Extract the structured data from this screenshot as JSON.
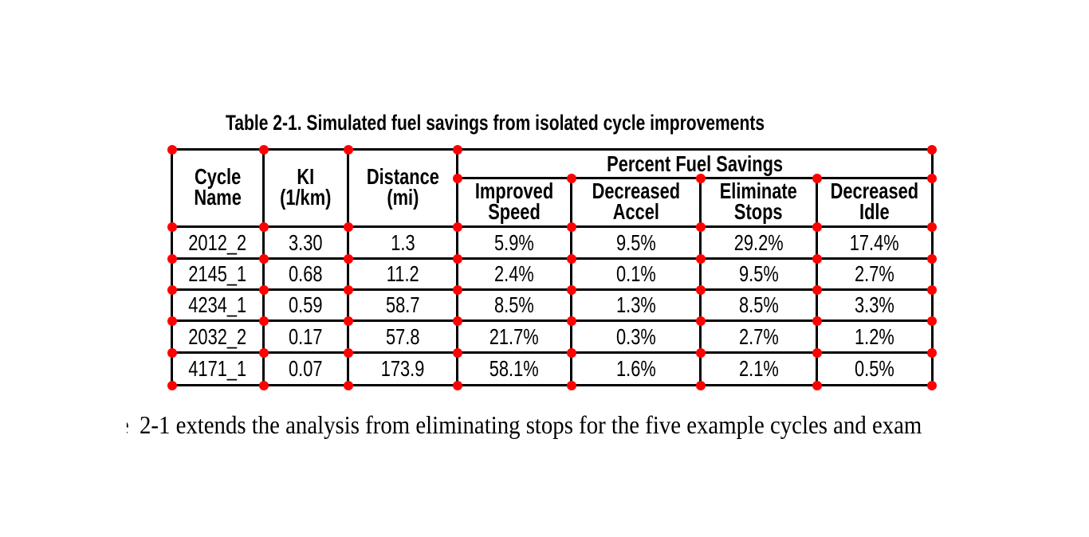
{
  "page": {
    "background_color": "#ffffff"
  },
  "caption": "Table 2-1. Simulated fuel savings from isolated cycle improvements",
  "table": {
    "marker_color": "#ff0000",
    "border_color": "#000000",
    "group_header": "Percent Fuel Savings",
    "column_headers": [
      {
        "id": "cycle-name",
        "lines": [
          "Cycle",
          "Name"
        ]
      },
      {
        "id": "ki",
        "lines": [
          "KI",
          "(1/km)"
        ]
      },
      {
        "id": "distance",
        "lines": [
          "Distance",
          "(mi)"
        ]
      },
      {
        "id": "improved-speed",
        "lines": [
          "Improved",
          "Speed"
        ]
      },
      {
        "id": "decreased-accel",
        "lines": [
          "Decreased",
          "Accel"
        ]
      },
      {
        "id": "eliminate-stops",
        "lines": [
          "Eliminate",
          "Stops"
        ]
      },
      {
        "id": "decreased-idle",
        "lines": [
          "Decreased",
          "Idle"
        ]
      }
    ],
    "rows": [
      [
        "2012_2",
        "3.30",
        "1.3",
        "5.9%",
        "9.5%",
        "29.2%",
        "17.4%"
      ],
      [
        "2145_1",
        "0.68",
        "11.2",
        "2.4%",
        "0.1%",
        "9.5%",
        "2.7%"
      ],
      [
        "4234_1",
        "0.59",
        "58.7",
        "8.5%",
        "1.3%",
        "8.5%",
        "3.3%"
      ],
      [
        "2032_2",
        "0.17",
        "57.8",
        "21.7%",
        "0.3%",
        "2.7%",
        "1.2%"
      ],
      [
        "4171_1",
        "0.07",
        "173.9",
        "58.1%",
        "1.6%",
        "2.1%",
        "0.5%"
      ]
    ]
  },
  "body_text": {
    "leading_fragment": "e",
    "text": "2-1 extends the analysis from eliminating stops for the five example cycles and exam"
  }
}
